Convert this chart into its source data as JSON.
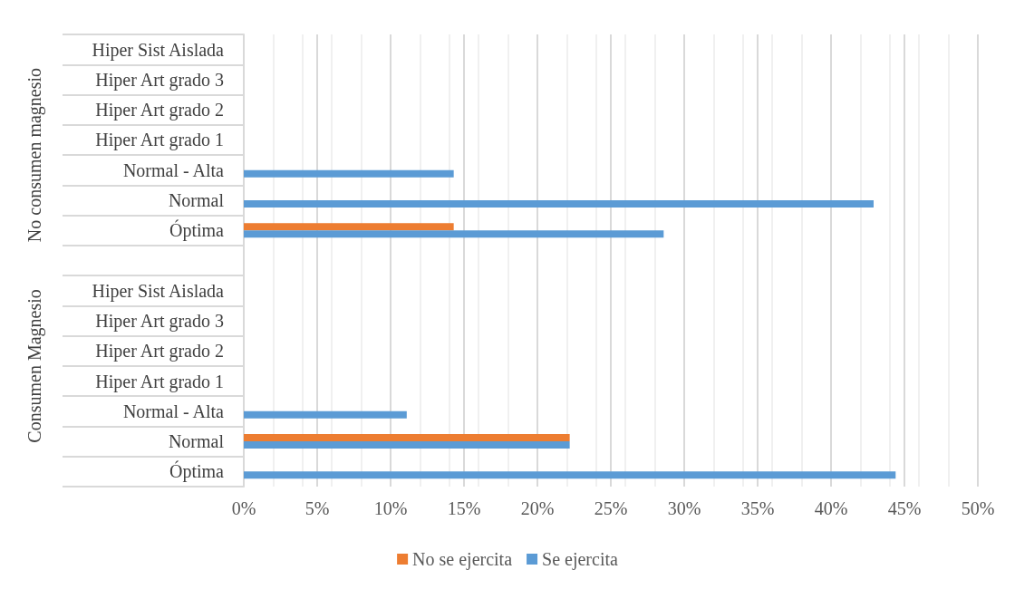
{
  "chart_data": {
    "type": "bar",
    "orientation": "horizontal",
    "categories": [
      "Hiper Sist Aislada",
      "Hiper Art grado 3",
      "Hiper Art grado 2",
      "Hiper Art grado 1",
      "Normal - Alta",
      "Normal",
      "Óptima",
      null,
      "Hiper Sist Aislada",
      "Hiper Art grado 3",
      "Hiper Art grado 2",
      "Hiper Art grado 1",
      "Normal - Alta",
      "Normal",
      "Óptima"
    ],
    "series": [
      {
        "name": "No se ejercita",
        "color": "#ed7d31",
        "values": [
          null,
          null,
          null,
          null,
          null,
          null,
          14.3,
          null,
          null,
          null,
          null,
          null,
          null,
          22.2,
          null
        ]
      },
      {
        "name": "Se ejercita",
        "color": "#5b9bd5",
        "values": [
          null,
          null,
          null,
          null,
          14.3,
          42.9,
          28.6,
          null,
          null,
          null,
          null,
          null,
          11.1,
          22.2,
          44.4
        ]
      }
    ],
    "xlim": [
      0,
      50
    ],
    "xticks": [
      {
        "value": 0,
        "label": "0%"
      },
      {
        "value": 5,
        "label": "5%"
      },
      {
        "value": 10,
        "label": "10%"
      },
      {
        "value": 15,
        "label": "15%"
      },
      {
        "value": 20,
        "label": "20%"
      },
      {
        "value": 25,
        "label": "25%"
      },
      {
        "value": 30,
        "label": "30%"
      },
      {
        "value": 35,
        "label": "35%"
      },
      {
        "value": 40,
        "label": "40%"
      },
      {
        "value": 45,
        "label": "45%"
      },
      {
        "value": 50,
        "label": "50%"
      }
    ],
    "annotations": [
      "No consumen magnesio",
      "Consumen Magnesio"
    ],
    "grid": true,
    "legend": "bottom"
  }
}
